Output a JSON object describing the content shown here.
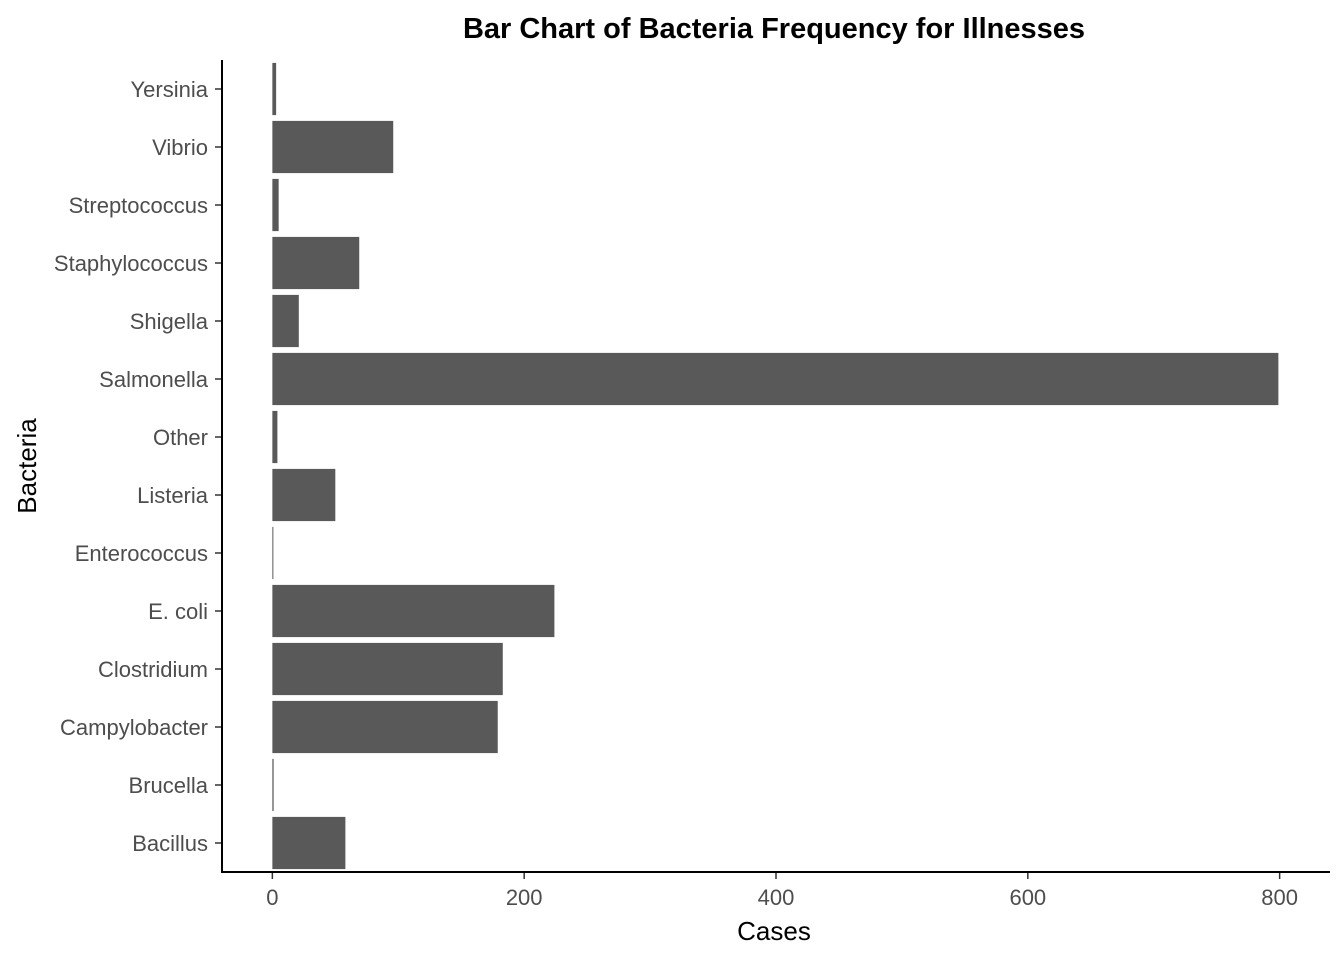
{
  "chart_data": {
    "type": "bar",
    "orientation": "horizontal",
    "title": "Bar Chart of Bacteria Frequency for Illnesses",
    "xlabel": "Cases",
    "ylabel": "Bacteria",
    "categories": [
      "Bacillus",
      "Brucella",
      "Campylobacter",
      "Clostridium",
      "E. coli",
      "Enterococcus",
      "Listeria",
      "Other",
      "Salmonella",
      "Shigella",
      "Staphylococcus",
      "Streptococcus",
      "Vibrio",
      "Yersinia"
    ],
    "values": [
      58,
      1,
      179,
      183,
      224,
      0.5,
      50,
      4,
      799,
      21,
      69,
      5,
      96,
      3
    ],
    "xlim": [
      -40,
      840
    ],
    "xticks": [
      0,
      200,
      400,
      600,
      800
    ],
    "xtick_labels": [
      "0",
      "200",
      "400",
      "600",
      "800"
    ],
    "grid": false,
    "bar_color": "#595959"
  }
}
